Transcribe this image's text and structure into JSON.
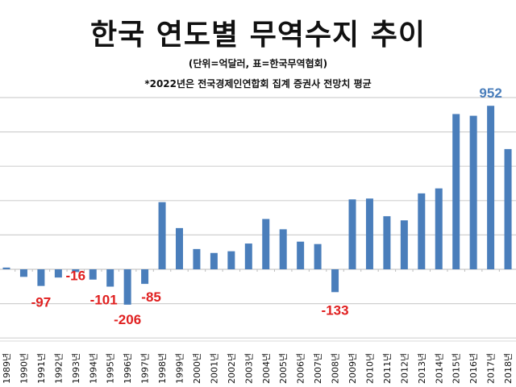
{
  "chart_data": {
    "type": "bar",
    "title": "한국 연도별 무역수지 추이",
    "subtitle": "(단위=억달러, 표=한국무역협회)",
    "note": "*2022년은 전국경제인연합회 집계 증권사 전망치 평균",
    "xlabel": "",
    "ylabel": "",
    "categories": [
      "1989년",
      "1990년",
      "1991년",
      "1992년",
      "1993년",
      "1994년",
      "1995년",
      "1996년",
      "1997년",
      "1998년",
      "1999년",
      "2000년",
      "2001년",
      "2002년",
      "2003년",
      "2004년",
      "2005년",
      "2006년",
      "2007년",
      "2008년",
      "2009년",
      "2010년",
      "2011년",
      "2012년",
      "2013년",
      "2014년",
      "2015년",
      "2016년",
      "2017년",
      "2018년"
    ],
    "values": [
      10,
      -44,
      -97,
      -48,
      -16,
      -60,
      -101,
      -206,
      -85,
      391,
      240,
      118,
      95,
      105,
      150,
      293,
      233,
      161,
      147,
      -133,
      407,
      412,
      309,
      285,
      442,
      471,
      904,
      894,
      952,
      700
    ],
    "data_labels": [
      {
        "index": 2,
        "text": "-97"
      },
      {
        "index": 4,
        "text": "-16"
      },
      {
        "index": 6,
        "text": "-101"
      },
      {
        "index": 7,
        "text": "-206"
      },
      {
        "index": 8,
        "text": "-85"
      },
      {
        "index": 19,
        "text": "-133"
      },
      {
        "index": 28,
        "text": "952"
      }
    ],
    "ylim": [
      -400,
      1000
    ],
    "y_grid_step": 200,
    "grid": true,
    "legend": "none",
    "colors": {
      "bar": "#4a7ebb",
      "negative_label": "#e02020",
      "positive_label": "#4a7ebb",
      "grid": "#d0d0d0"
    }
  }
}
